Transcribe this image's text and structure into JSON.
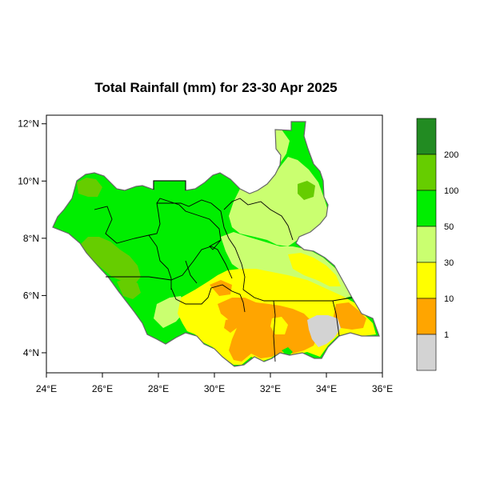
{
  "title": "Total Rainfall (mm) for 23-30 Apr 2025",
  "map": {
    "x_ticks": [
      "24°E",
      "26°E",
      "28°E",
      "30°E",
      "32°E",
      "34°E",
      "36°E"
    ],
    "y_ticks": [
      "12°N",
      "10°N",
      "8°N",
      "6°N",
      "4°N"
    ],
    "lon_range": [
      24,
      36
    ],
    "lat_range": [
      3.3,
      12.3
    ]
  },
  "colorbar": {
    "labels": [
      "200",
      "100",
      "50",
      "30",
      "10",
      "1"
    ],
    "colors": [
      "#228b22",
      "#66cd00",
      "#00ee00",
      "#caff70",
      "#ffff00",
      "#ffa500",
      "#d3d3d3"
    ]
  },
  "palette": {
    "gray": "#d3d3d3",
    "orange": "#ffa500",
    "yellow": "#ffff00",
    "light_green": "#caff70",
    "green": "#00ee00",
    "olive_green": "#66cd00",
    "dark_green": "#228b22"
  }
}
